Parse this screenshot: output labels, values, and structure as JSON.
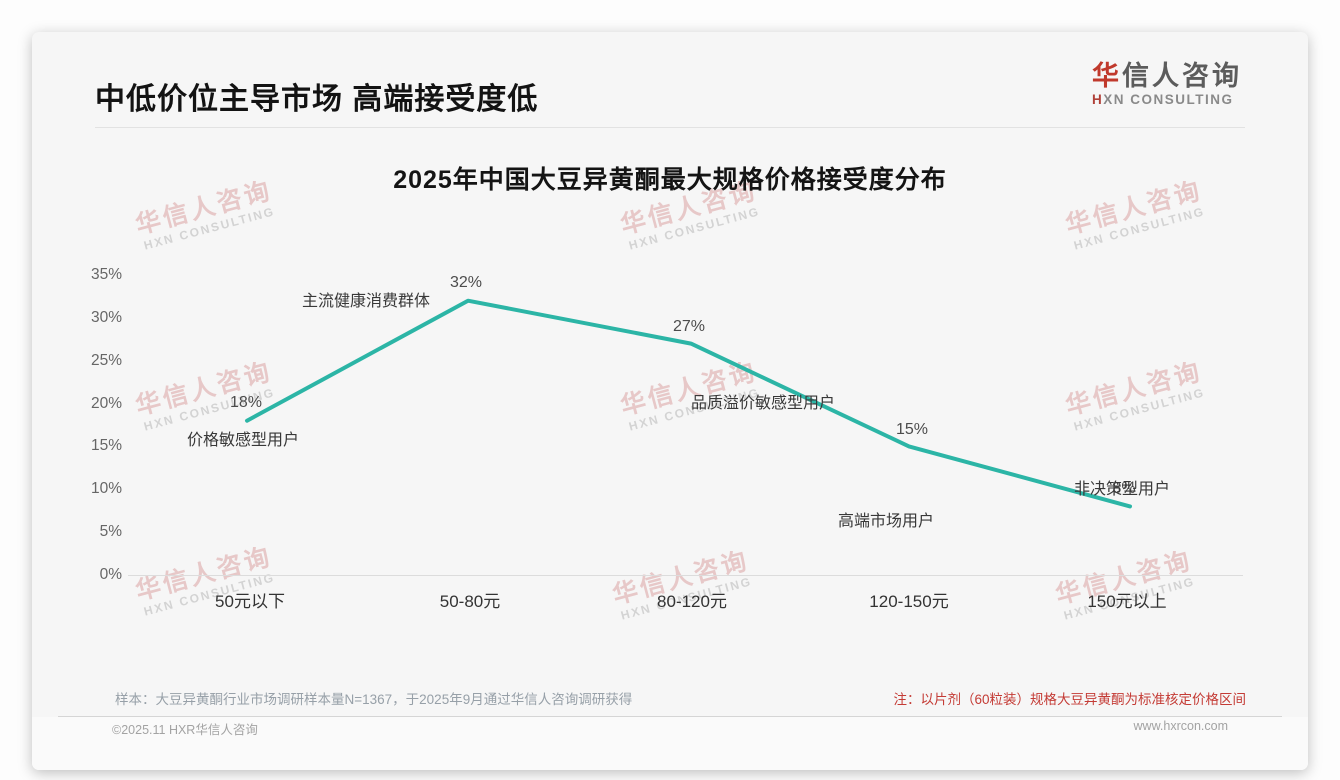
{
  "page": {
    "header": {
      "title": "中低价位主导市场 高端接受度低"
    },
    "logo": {
      "cn_first": "华",
      "cn_rest": "信人咨询",
      "en_first": "H",
      "en_rest": "XN CONSULTING"
    },
    "watermark": {
      "line1": "华信人咨询",
      "line2": "HXN CONSULTING"
    },
    "footnotes": {
      "sample": "样本：大豆异黄酮行业市场调研样本量N=1367，于2025年9月通过华信人咨询调研获得",
      "note": "注：以片剂（60粒装）规格大豆异黄酮为标准核定价格区间"
    },
    "footer": {
      "copyright": "©2025.11 HXR华信人咨询",
      "website": "www.hxrcon.com"
    }
  },
  "chart_data": {
    "type": "line",
    "title": "2025年中国大豆异黄酮最大规格价格接受度分布",
    "categories": [
      "50元以下",
      "50-80元",
      "80-120元",
      "120-150元",
      "150元以上"
    ],
    "values": [
      18,
      32,
      27,
      15,
      8
    ],
    "value_labels": [
      "18%",
      "32%",
      "27%",
      "15%",
      "8%"
    ],
    "segment_labels": [
      "价格敏感型用户",
      "主流健康消费群体",
      "品质溢价敏感型用户",
      "高端市场用户",
      "非决策型用户"
    ],
    "xlabel": "",
    "ylabel": "",
    "ylim": [
      0,
      35
    ],
    "yticks": [
      "35%",
      "30%",
      "25%",
      "20%",
      "15%",
      "10%",
      "5%",
      "0%"
    ],
    "grid": false,
    "legend": "none",
    "line_color": "#2cb5a6",
    "accent_red": "#c0392c"
  }
}
